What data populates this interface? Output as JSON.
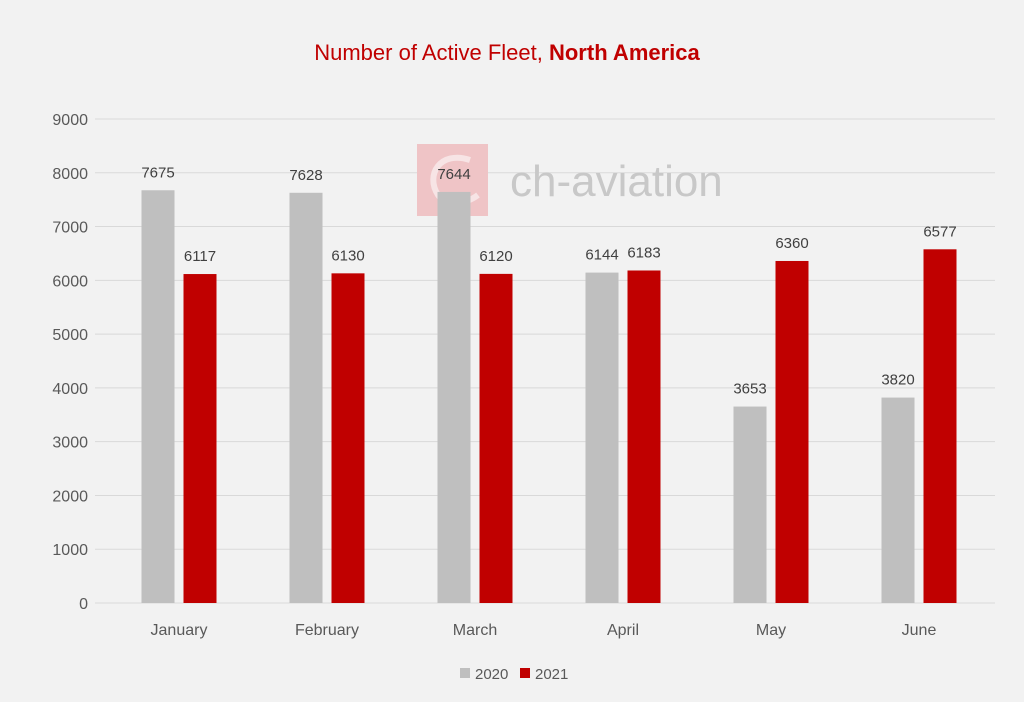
{
  "chart_data": {
    "type": "bar",
    "title": "Number of Active Fleet, ",
    "title_bold": "North America",
    "categories": [
      "January",
      "February",
      "March",
      "April",
      "May",
      "June"
    ],
    "series": [
      {
        "name": "2020",
        "color": "#bfbfbf",
        "values": [
          7675,
          7628,
          7644,
          6144,
          3653,
          3820
        ]
      },
      {
        "name": "2021",
        "color": "#c00000",
        "values": [
          6117,
          6130,
          6120,
          6183,
          6360,
          6577
        ]
      }
    ],
    "xlabel": "",
    "ylabel": "",
    "ylim": [
      0,
      9000
    ],
    "yticks": [
      0,
      1000,
      2000,
      3000,
      4000,
      5000,
      6000,
      7000,
      8000,
      9000
    ],
    "grid": true,
    "legend_position": "bottom",
    "watermark": "ch-aviation"
  }
}
